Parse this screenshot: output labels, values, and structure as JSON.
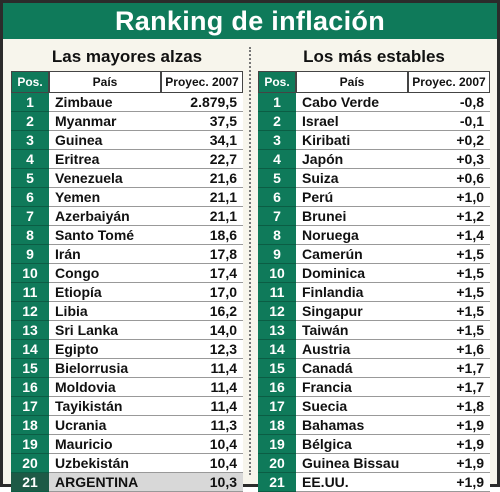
{
  "title": "Ranking de inflación",
  "left": {
    "heading": "Las mayores alzas",
    "headers": {
      "pos": "Pos.",
      "pais": "País",
      "value": "Proyec. 2007"
    },
    "rows": [
      {
        "pos": "1",
        "pais": "Zimbaue",
        "value": "2.879,5"
      },
      {
        "pos": "2",
        "pais": "Myanmar",
        "value": "37,5"
      },
      {
        "pos": "3",
        "pais": "Guinea",
        "value": "34,1"
      },
      {
        "pos": "4",
        "pais": "Eritrea",
        "value": "22,7"
      },
      {
        "pos": "5",
        "pais": "Venezuela",
        "value": "21,6"
      },
      {
        "pos": "6",
        "pais": "Yemen",
        "value": "21,1"
      },
      {
        "pos": "7",
        "pais": "Azerbaiyán",
        "value": "21,1"
      },
      {
        "pos": "8",
        "pais": "Santo Tomé",
        "value": "18,6"
      },
      {
        "pos": "9",
        "pais": "Irán",
        "value": "17,8"
      },
      {
        "pos": "10",
        "pais": "Congo",
        "value": "17,4"
      },
      {
        "pos": "11",
        "pais": "Etiopía",
        "value": "17,0"
      },
      {
        "pos": "12",
        "pais": "Libia",
        "value": "16,2"
      },
      {
        "pos": "13",
        "pais": "Sri Lanka",
        "value": "14,0"
      },
      {
        "pos": "14",
        "pais": "Egipto",
        "value": "12,3"
      },
      {
        "pos": "15",
        "pais": "Bielorrusia",
        "value": "11,4"
      },
      {
        "pos": "16",
        "pais": "Moldovia",
        "value": "11,4"
      },
      {
        "pos": "17",
        "pais": "Tayikistán",
        "value": "11,4"
      },
      {
        "pos": "18",
        "pais": "Ucrania",
        "value": "11,3"
      },
      {
        "pos": "19",
        "pais": "Mauricio",
        "value": "10,4"
      },
      {
        "pos": "20",
        "pais": "Uzbekistán",
        "value": "10,4"
      },
      {
        "pos": "21",
        "pais": "ARGENTINA",
        "value": "10,3",
        "highlight": true
      }
    ]
  },
  "right": {
    "heading": "Los más estables",
    "headers": {
      "pos": "Pos.",
      "pais": "País",
      "value": "Proyec. 2007"
    },
    "rows": [
      {
        "pos": "1",
        "pais": "Cabo Verde",
        "value": "-0,8"
      },
      {
        "pos": "2",
        "pais": "Israel",
        "value": "-0,1"
      },
      {
        "pos": "3",
        "pais": "Kiribati",
        "value": "+0,2"
      },
      {
        "pos": "4",
        "pais": "Japón",
        "value": "+0,3"
      },
      {
        "pos": "5",
        "pais": "Suiza",
        "value": "+0,6"
      },
      {
        "pos": "6",
        "pais": "Perú",
        "value": "+1,0"
      },
      {
        "pos": "7",
        "pais": "Brunei",
        "value": "+1,2"
      },
      {
        "pos": "8",
        "pais": "Noruega",
        "value": "+1,4"
      },
      {
        "pos": "9",
        "pais": "Camerún",
        "value": "+1,5"
      },
      {
        "pos": "10",
        "pais": "Dominica",
        "value": "+1,5"
      },
      {
        "pos": "11",
        "pais": "Finlandia",
        "value": "+1,5"
      },
      {
        "pos": "12",
        "pais": "Singapur",
        "value": "+1,5"
      },
      {
        "pos": "13",
        "pais": "Taiwán",
        "value": "+1,5"
      },
      {
        "pos": "14",
        "pais": "Austria",
        "value": "+1,6"
      },
      {
        "pos": "15",
        "pais": "Canadá",
        "value": "+1,7"
      },
      {
        "pos": "16",
        "pais": "Francia",
        "value": "+1,7"
      },
      {
        "pos": "17",
        "pais": "Suecia",
        "value": "+1,8"
      },
      {
        "pos": "18",
        "pais": "Bahamas",
        "value": "+1,9"
      },
      {
        "pos": "19",
        "pais": "Bélgica",
        "value": "+1,9"
      },
      {
        "pos": "20",
        "pais": "Guinea Bissau",
        "value": "+1,9"
      },
      {
        "pos": "21",
        "pais": "EE.UU.",
        "value": "+1,9"
      }
    ]
  }
}
